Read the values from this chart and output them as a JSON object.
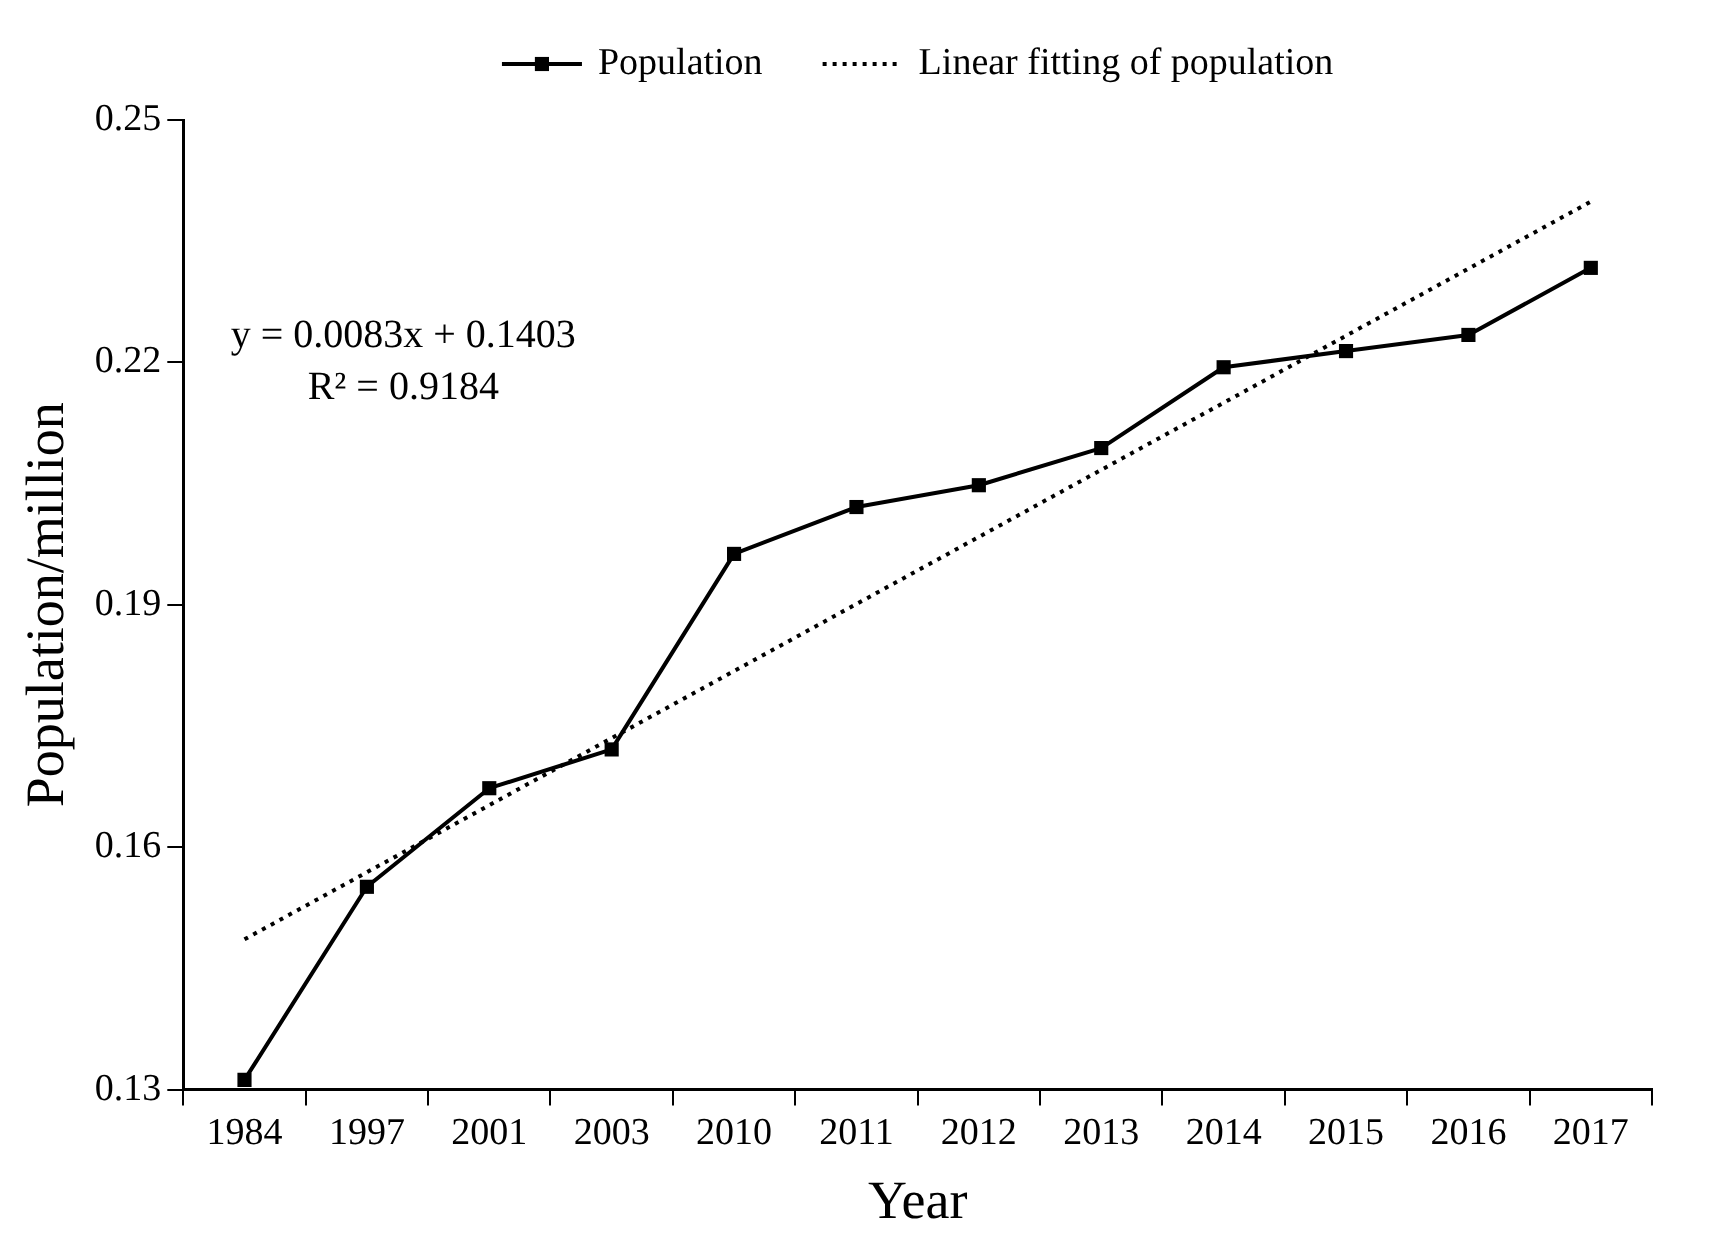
{
  "chart_data": {
    "type": "line",
    "xlabel": "Year",
    "ylabel": "Population/million",
    "categories": [
      "1984",
      "1997",
      "2001",
      "2003",
      "2010",
      "2011",
      "2012",
      "2013",
      "2014",
      "2015",
      "2016",
      "2017"
    ],
    "series": [
      {
        "name": "Population",
        "color": "#000000",
        "marker": "square",
        "line_style": "solid",
        "values": [
          0.1312,
          0.1551,
          0.1673,
          0.1721,
          0.1963,
          0.2021,
          0.2048,
          0.2094,
          0.2194,
          0.2214,
          0.2234,
          0.2317
        ]
      },
      {
        "name": "Linear fitting of population",
        "color": "#000000",
        "marker": "none",
        "line_style": "dotted",
        "values": [
          0.1486,
          0.1569,
          0.1652,
          0.1735,
          0.1818,
          0.1901,
          0.1984,
          0.2067,
          0.215,
          0.2233,
          0.2316,
          0.2399
        ]
      }
    ],
    "ylim": [
      0.13,
      0.25
    ],
    "yticks": [
      0.13,
      0.16,
      0.19,
      0.22,
      0.25
    ],
    "grid": false,
    "legend": "top",
    "annotations": [
      "y = 0.0083x + 0.1403",
      "R² = 0.9184"
    ]
  }
}
